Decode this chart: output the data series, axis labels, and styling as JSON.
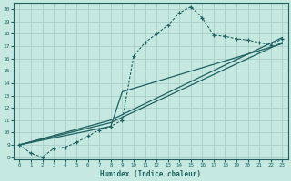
{
  "xlabel": "Humidex (Indice chaleur)",
  "xlim": [
    -0.5,
    23.5
  ],
  "ylim": [
    7.8,
    20.5
  ],
  "xticks": [
    0,
    1,
    2,
    3,
    4,
    5,
    6,
    7,
    8,
    9,
    10,
    11,
    12,
    13,
    14,
    15,
    16,
    17,
    18,
    19,
    20,
    21,
    22,
    23
  ],
  "yticks": [
    8,
    9,
    10,
    11,
    12,
    13,
    14,
    15,
    16,
    17,
    18,
    19,
    20
  ],
  "bg_color": "#c5e8e0",
  "grid_color": "#a8cfc8",
  "line_color": "#206060",
  "dotted_x": [
    0,
    1,
    2,
    3,
    4,
    5,
    6,
    7,
    8,
    9,
    10,
    11,
    12,
    13,
    14,
    15,
    16,
    17,
    18,
    19,
    20,
    21,
    22,
    23
  ],
  "dotted_y": [
    9.0,
    8.3,
    8.0,
    8.7,
    8.8,
    9.2,
    9.7,
    10.2,
    10.5,
    11.0,
    16.2,
    17.3,
    18.0,
    18.7,
    19.7,
    20.2,
    19.3,
    17.9,
    17.8,
    17.6,
    17.5,
    17.3,
    17.1,
    17.6
  ],
  "line1_x": [
    0,
    8,
    23
  ],
  "line1_y": [
    9.0,
    11.0,
    17.7
  ],
  "line2_x": [
    0,
    8,
    23
  ],
  "line2_y": [
    9.0,
    10.8,
    17.3
  ],
  "line3_x": [
    0,
    8,
    9,
    23
  ],
  "line3_y": [
    9.0,
    10.5,
    13.3,
    17.2
  ]
}
